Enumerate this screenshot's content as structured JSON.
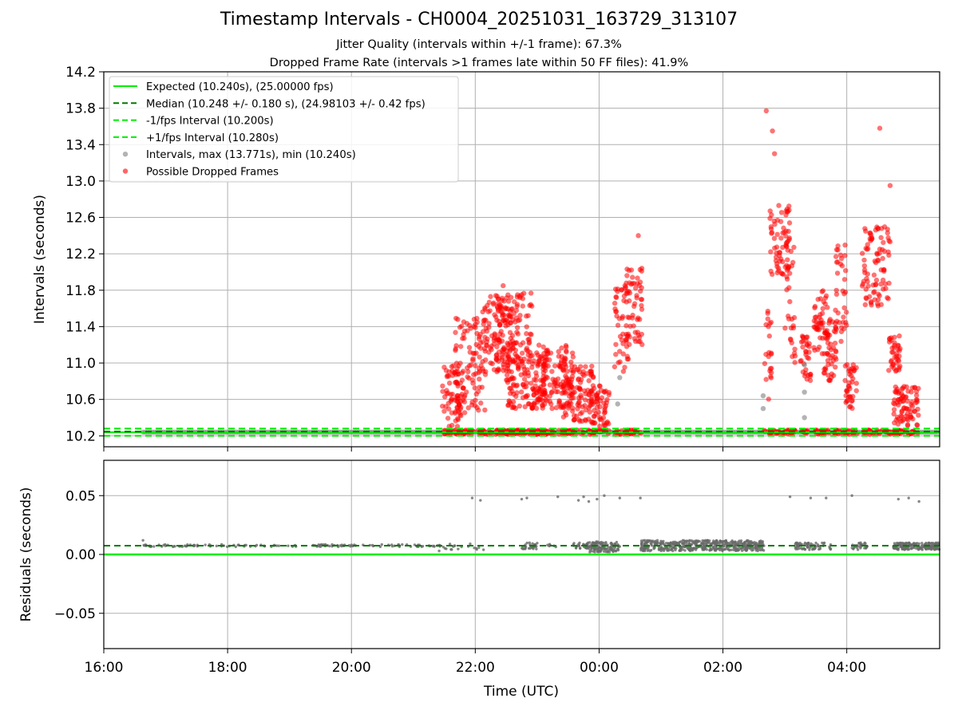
{
  "title": "Timestamp Intervals - CH0004_20251031_163729_313107",
  "subtitle_jitter": "Jitter Quality (intervals within +/-1 frame): 67.3%",
  "subtitle_dropped": "Dropped Frame Rate (intervals >1 frames late within 50 FF files): 41.9%",
  "colors": {
    "expected": "#00ee00",
    "median": "#007a00",
    "fps_bounds": "#00ee00",
    "intervals": "#808080",
    "dropped": "#ff0000",
    "residuals": "#696969",
    "grid": "#b0b0b0"
  },
  "chart_data": [
    {
      "type": "scatter",
      "xlabel": "Time (UTC)",
      "ylabel": "Intervals (seconds)",
      "x_axis": "time",
      "xlim": [
        "16:00",
        "05:30"
      ],
      "x_ticks": [
        "16:00",
        "18:00",
        "20:00",
        "22:00",
        "00:00",
        "02:00",
        "04:00"
      ],
      "ylim": [
        10.08,
        14.2
      ],
      "y_ticks": [
        10.2,
        10.6,
        11.0,
        11.4,
        11.8,
        12.2,
        12.6,
        13.0,
        13.4,
        13.8,
        14.2
      ],
      "y_tick_labels": [
        "10.2",
        "10.6",
        "11.0",
        "11.4",
        "11.8",
        "12.2",
        "12.6",
        "13.0",
        "13.4",
        "13.8",
        "14.2"
      ],
      "grid": true,
      "legend_position": "upper-left",
      "legend": [
        {
          "label": "Expected (10.240s), (25.00000 fps)",
          "style": "solid",
          "color": "#00ee00"
        },
        {
          "label": "Median (10.248 +/- 0.180 s), (24.98103 +/- 0.42 fps)",
          "style": "dashed",
          "color": "#007a00"
        },
        {
          "label": "-1/fps Interval (10.200s)",
          "style": "dashed",
          "color": "#00ee00"
        },
        {
          "label": "+1/fps Interval (10.280s)",
          "style": "dashed",
          "color": "#00ee00"
        },
        {
          "label": "Intervals, max (13.771s), min (10.240s)",
          "style": "marker",
          "color": "#808080"
        },
        {
          "label": "Possible Dropped Frames",
          "style": "marker",
          "color": "#ff0000"
        }
      ],
      "reference_lines": {
        "expected": 10.24,
        "median": 10.248,
        "minus_one_fps": 10.2,
        "plus_one_fps": 10.28
      },
      "baseline_intervals": {
        "start": "16:38",
        "end": "05:30",
        "value": 10.24
      },
      "dropped_frame_bursts": [
        {
          "start": "21:28",
          "end": "21:50",
          "low": 10.3,
          "high": 11.0
        },
        {
          "start": "21:40",
          "end": "22:10",
          "low": 10.45,
          "high": 11.5
        },
        {
          "start": "22:05",
          "end": "22:35",
          "low": 10.9,
          "high": 11.75
        },
        {
          "start": "22:20",
          "end": "22:55",
          "low": 11.0,
          "high": 11.8
        },
        {
          "start": "22:30",
          "end": "23:10",
          "low": 10.5,
          "high": 11.1
        },
        {
          "start": "22:55",
          "end": "23:35",
          "low": 10.5,
          "high": 11.2
        },
        {
          "start": "23:25",
          "end": "23:55",
          "low": 10.35,
          "high": 11.0
        },
        {
          "start": "23:50",
          "end": "00:10",
          "low": 10.3,
          "high": 10.75
        },
        {
          "start": "00:15",
          "end": "00:30",
          "low": 10.9,
          "high": 11.85
        },
        {
          "start": "00:25",
          "end": "00:42",
          "low": 11.2,
          "high": 12.05
        },
        {
          "start": "02:40",
          "end": "02:47",
          "low": 10.6,
          "high": 11.6
        },
        {
          "start": "02:45",
          "end": "03:05",
          "low": 11.9,
          "high": 12.75
        },
        {
          "start": "03:00",
          "end": "03:10",
          "low": 11.0,
          "high": 12.4
        },
        {
          "start": "03:15",
          "end": "03:25",
          "low": 10.8,
          "high": 11.3
        },
        {
          "start": "03:28",
          "end": "03:42",
          "low": 11.1,
          "high": 11.8
        },
        {
          "start": "03:35",
          "end": "03:50",
          "low": 10.8,
          "high": 11.5
        },
        {
          "start": "03:48",
          "end": "04:00",
          "low": 11.2,
          "high": 12.3
        },
        {
          "start": "03:58",
          "end": "04:10",
          "low": 10.5,
          "high": 11.0
        },
        {
          "start": "04:15",
          "end": "04:42",
          "low": 11.6,
          "high": 12.5
        },
        {
          "start": "04:40",
          "end": "04:52",
          "low": 10.9,
          "high": 11.3
        },
        {
          "start": "04:45",
          "end": "05:10",
          "low": 10.3,
          "high": 10.75
        }
      ],
      "dropped_frame_outliers": [
        {
          "x": "02:42",
          "y": 13.771
        },
        {
          "x": "02:48",
          "y": 13.55
        },
        {
          "x": "02:50",
          "y": 13.3
        },
        {
          "x": "04:32",
          "y": 13.58
        },
        {
          "x": "04:42",
          "y": 12.95
        },
        {
          "x": "00:38",
          "y": 12.4
        },
        {
          "x": "22:27",
          "y": 11.85
        }
      ],
      "gray_outliers": [
        {
          "x": "02:39",
          "y": 10.5
        },
        {
          "x": "02:39",
          "y": 10.64
        },
        {
          "x": "03:19",
          "y": 10.98
        },
        {
          "x": "03:19",
          "y": 10.68
        },
        {
          "x": "03:19",
          "y": 10.4
        },
        {
          "x": "00:20",
          "y": 10.84
        },
        {
          "x": "00:18",
          "y": 10.55
        }
      ]
    },
    {
      "type": "scatter",
      "xlabel": "Time (UTC)",
      "ylabel": "Residuals (seconds)",
      "x_axis": "time",
      "xlim": [
        "16:00",
        "05:30"
      ],
      "x_ticks": [
        "16:00",
        "18:00",
        "20:00",
        "22:00",
        "00:00",
        "02:00",
        "04:00"
      ],
      "ylim": [
        -0.08,
        0.08
      ],
      "y_ticks": [
        -0.05,
        0.0,
        0.05
      ],
      "y_tick_labels": [
        "−0.05",
        "0.00",
        "0.05"
      ],
      "grid": true,
      "reference_lines": {
        "zero": 0.0,
        "median": 0.0075
      },
      "residual_bands": [
        {
          "start": "16:38",
          "end": "21:28",
          "low": 0.0065,
          "high": 0.0085,
          "density": "sparse"
        },
        {
          "start": "21:28",
          "end": "22:05",
          "low": 0.004,
          "high": 0.009,
          "density": "sparse"
        },
        {
          "start": "22:45",
          "end": "23:00",
          "low": 0.004,
          "high": 0.01,
          "density": "medium"
        },
        {
          "start": "23:10",
          "end": "23:20",
          "low": 0.006,
          "high": 0.009,
          "density": "sparse"
        },
        {
          "start": "23:35",
          "end": "23:50",
          "low": 0.005,
          "high": 0.01,
          "density": "medium"
        },
        {
          "start": "23:50",
          "end": "00:20",
          "low": 0.002,
          "high": 0.011,
          "density": "dense"
        },
        {
          "start": "00:40",
          "end": "02:40",
          "low": 0.003,
          "high": 0.012,
          "density": "dense"
        },
        {
          "start": "03:10",
          "end": "03:45",
          "low": 0.004,
          "high": 0.01,
          "density": "medium"
        },
        {
          "start": "04:05",
          "end": "04:20",
          "low": 0.004,
          "high": 0.01,
          "density": "medium"
        },
        {
          "start": "04:45",
          "end": "05:30",
          "low": 0.004,
          "high": 0.01,
          "density": "dense"
        }
      ],
      "residual_outliers": [
        {
          "x": "16:38",
          "y": 0.012
        },
        {
          "x": "21:25",
          "y": 0.003
        },
        {
          "x": "22:08",
          "y": 0.004
        },
        {
          "x": "21:57",
          "y": 0.048
        },
        {
          "x": "22:05",
          "y": 0.046
        },
        {
          "x": "22:45",
          "y": 0.047
        },
        {
          "x": "22:50",
          "y": 0.048
        },
        {
          "x": "23:20",
          "y": 0.049
        },
        {
          "x": "23:40",
          "y": 0.046
        },
        {
          "x": "23:45",
          "y": 0.049
        },
        {
          "x": "23:50",
          "y": 0.045
        },
        {
          "x": "23:58",
          "y": 0.047
        },
        {
          "x": "00:05",
          "y": 0.05
        },
        {
          "x": "00:20",
          "y": 0.048
        },
        {
          "x": "00:40",
          "y": 0.048
        },
        {
          "x": "03:05",
          "y": 0.049
        },
        {
          "x": "03:25",
          "y": 0.048
        },
        {
          "x": "03:40",
          "y": 0.048
        },
        {
          "x": "04:05",
          "y": 0.05
        },
        {
          "x": "04:50",
          "y": 0.047
        },
        {
          "x": "05:00",
          "y": 0.048
        },
        {
          "x": "05:10",
          "y": 0.045
        }
      ]
    }
  ]
}
